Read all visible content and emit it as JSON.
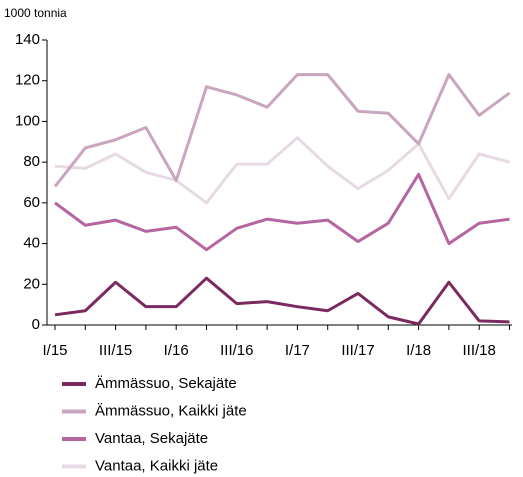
{
  "chart_data": {
    "type": "line",
    "y_axis_label": "1000 tonnia",
    "categories": [
      "I/15",
      null,
      "III/15",
      null,
      "I/16",
      null,
      "III/16",
      null,
      "I/17",
      null,
      "III/17",
      null,
      "I/18",
      null,
      "III/18",
      null
    ],
    "series": [
      {
        "name": "Ämmässuo, Sekajäte",
        "color": "#7b2a5f",
        "values": [
          5,
          7,
          21,
          9,
          9,
          23,
          10.5,
          11.5,
          9,
          7,
          15.5,
          4,
          0.5,
          21,
          2,
          1.5
        ]
      },
      {
        "name": "Ämmässuo, Kaikki jäte",
        "color": "#c9a5c0",
        "values": [
          68,
          87,
          91,
          97,
          71,
          117,
          113,
          107,
          123,
          123,
          105,
          104,
          89,
          123,
          103,
          114
        ]
      },
      {
        "name": "Vantaa, Sekajäte",
        "color": "#b5659f",
        "values": [
          60,
          49,
          51.5,
          46,
          48,
          37,
          47.5,
          52,
          50,
          51.5,
          41,
          50,
          74,
          40,
          50,
          52
        ]
      },
      {
        "name": "Vantaa, Kaikki jäte",
        "color": "#e8dae4",
        "values": [
          78,
          77,
          84,
          75,
          71,
          60,
          79,
          79,
          92,
          78,
          67,
          76,
          89,
          62,
          84,
          80
        ]
      }
    ],
    "ylim": [
      0,
      140
    ],
    "yticks": [
      0,
      20,
      40,
      60,
      80,
      100,
      120,
      140
    ],
    "grid": false
  }
}
